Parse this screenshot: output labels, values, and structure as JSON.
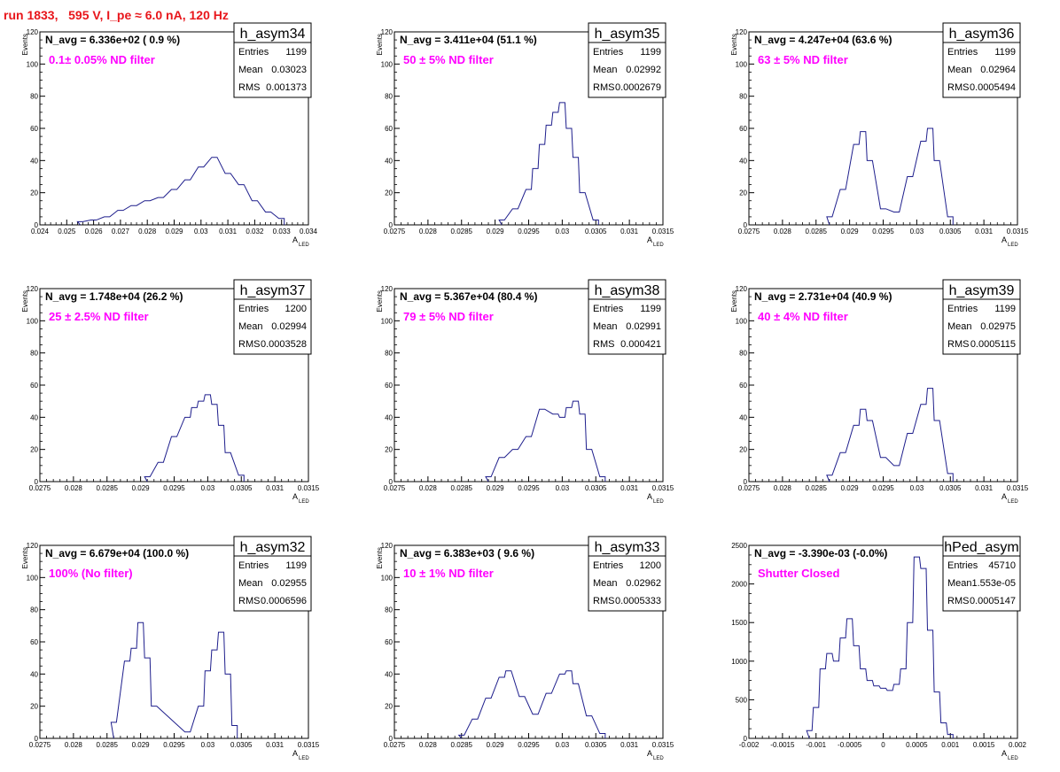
{
  "header": {
    "title": "run 1833,   595 V, I_pe ≈ 6.0 nA, 120 Hz"
  },
  "colors": {
    "histogram": "#1e1e8c",
    "annotation": "#ff00ff",
    "title": "#e8161b"
  },
  "chart_data": [
    {
      "type": "histogram",
      "name": "h_asym34",
      "stats": {
        "entries": "1199",
        "mean": "0.03023",
        "rms": "0.001373"
      },
      "navg": "N_avg = 6.336e+02 ( 0.9 %)",
      "filter": "0.1± 0.05% ND filter",
      "xlabel": "A",
      "xlabel_sub": "LED",
      "ylabel": "Events",
      "xlim": [
        0.024,
        0.034
      ],
      "ylim": [
        0,
        120
      ],
      "xticks": [
        "0.024",
        "0.025",
        "0.026",
        "0.027",
        "0.028",
        "0.029",
        "0.03",
        "0.031",
        "0.032",
        "0.033",
        "0.034"
      ],
      "xtick_values": [
        0.024,
        0.025,
        0.026,
        0.027,
        0.028,
        0.029,
        0.03,
        0.031,
        0.032,
        0.033,
        0.034
      ],
      "yticks": [
        0,
        20,
        40,
        60,
        80,
        100,
        120
      ],
      "x": [
        0.0255,
        0.026,
        0.0265,
        0.027,
        0.0275,
        0.028,
        0.0285,
        0.029,
        0.0295,
        0.03,
        0.0305,
        0.031,
        0.0315,
        0.032,
        0.0325,
        0.033
      ],
      "y": [
        2,
        3,
        5,
        9,
        12,
        15,
        17,
        22,
        28,
        36,
        42,
        32,
        25,
        15,
        8,
        4
      ]
    },
    {
      "type": "histogram",
      "name": "h_asym35",
      "stats": {
        "entries": "1199",
        "mean": "0.02992",
        "rms": "0.0002679"
      },
      "navg": "N_avg = 3.411e+04 (51.1 %)",
      "filter": "50 ± 5% ND filter",
      "xlabel": "A",
      "xlabel_sub": "LED",
      "ylabel": "Events",
      "xlim": [
        0.0275,
        0.0315
      ],
      "ylim": [
        0,
        120
      ],
      "xticks": [
        "0.0275",
        "0.028",
        "0.0285",
        "0.029",
        "0.0295",
        "0.03",
        "0.0305",
        "0.031",
        "0.0315"
      ],
      "xtick_values": [
        0.0275,
        0.028,
        0.0285,
        0.029,
        0.0295,
        0.03,
        0.0305,
        0.031,
        0.0315
      ],
      "yticks": [
        0,
        20,
        40,
        60,
        80,
        100,
        120
      ],
      "x": [
        0.0291,
        0.0293,
        0.0295,
        0.0296,
        0.0297,
        0.0298,
        0.0299,
        0.03,
        0.0301,
        0.0302,
        0.0303,
        0.0305
      ],
      "y": [
        3,
        10,
        22,
        35,
        50,
        62,
        70,
        76,
        60,
        42,
        20,
        3
      ]
    },
    {
      "type": "histogram",
      "name": "h_asym36",
      "stats": {
        "entries": "1199",
        "mean": "0.02964",
        "rms": "0.0005494"
      },
      "navg": "N_avg = 4.247e+04 (63.6 %)",
      "filter": "63 ± 5% ND filter",
      "xlabel": "A",
      "xlabel_sub": "LED",
      "ylabel": "Events",
      "xlim": [
        0.0275,
        0.0315
      ],
      "ylim": [
        0,
        120
      ],
      "xticks": [
        "0.0275",
        "0.028",
        "0.0285",
        "0.029",
        "0.0295",
        "0.03",
        "0.0305",
        "0.031",
        "0.0315"
      ],
      "xtick_values": [
        0.0275,
        0.028,
        0.0285,
        0.029,
        0.0295,
        0.03,
        0.0305,
        0.031,
        0.0315
      ],
      "yticks": [
        0,
        20,
        40,
        60,
        80,
        100,
        120
      ],
      "x": [
        0.0287,
        0.0289,
        0.0291,
        0.0292,
        0.0293,
        0.0295,
        0.0297,
        0.0299,
        0.0301,
        0.0302,
        0.0303,
        0.0305
      ],
      "y": [
        5,
        22,
        50,
        58,
        40,
        10,
        8,
        30,
        52,
        60,
        40,
        5
      ]
    },
    {
      "type": "histogram",
      "name": "h_asym37",
      "stats": {
        "entries": "1200",
        "mean": "0.02994",
        "rms": "0.0003528"
      },
      "navg": "N_avg = 1.748e+04 (26.2 %)",
      "filter": "25 ± 2.5% ND filter",
      "xlabel": "A",
      "xlabel_sub": "LED",
      "ylabel": "Events",
      "xlim": [
        0.0275,
        0.0315
      ],
      "ylim": [
        0,
        120
      ],
      "xticks": [
        "0.0275",
        "0.028",
        "0.0285",
        "0.029",
        "0.0295",
        "0.03",
        "0.0305",
        "0.031",
        "0.0315"
      ],
      "xtick_values": [
        0.0275,
        0.028,
        0.0285,
        0.029,
        0.0295,
        0.03,
        0.0305,
        0.031,
        0.0315
      ],
      "yticks": [
        0,
        20,
        40,
        60,
        80,
        100,
        120
      ],
      "x": [
        0.0291,
        0.0293,
        0.0295,
        0.0297,
        0.0298,
        0.0299,
        0.03,
        0.0301,
        0.0302,
        0.0303,
        0.0305
      ],
      "y": [
        3,
        12,
        28,
        40,
        46,
        50,
        54,
        48,
        35,
        18,
        4
      ]
    },
    {
      "type": "histogram",
      "name": "h_asym38",
      "stats": {
        "entries": "1199",
        "mean": "0.02991",
        "rms": "0.000421"
      },
      "navg": "N_avg = 5.367e+04 (80.4 %)",
      "filter": "79 ± 5% ND filter",
      "xlabel": "A",
      "xlabel_sub": "LED",
      "ylabel": "Events",
      "xlim": [
        0.0275,
        0.0315
      ],
      "ylim": [
        0,
        120
      ],
      "xticks": [
        "0.0275",
        "0.028",
        "0.0285",
        "0.029",
        "0.0295",
        "0.03",
        "0.0305",
        "0.031",
        "0.0315"
      ],
      "xtick_values": [
        0.0275,
        0.028,
        0.0285,
        0.029,
        0.0295,
        0.03,
        0.0305,
        0.031,
        0.0315
      ],
      "yticks": [
        0,
        20,
        40,
        60,
        80,
        100,
        120
      ],
      "x": [
        0.0289,
        0.0291,
        0.0293,
        0.0295,
        0.0297,
        0.0299,
        0.03,
        0.0301,
        0.0302,
        0.0303,
        0.0304,
        0.0306
      ],
      "y": [
        3,
        15,
        20,
        28,
        45,
        42,
        40,
        46,
        50,
        42,
        20,
        3
      ]
    },
    {
      "type": "histogram",
      "name": "h_asym39",
      "stats": {
        "entries": "1199",
        "mean": "0.02975",
        "rms": "0.0005115"
      },
      "navg": "N_avg = 2.731e+04 (40.9 %)",
      "filter": "40 ± 4% ND filter",
      "xlabel": "A",
      "xlabel_sub": "LED",
      "ylabel": "Events",
      "xlim": [
        0.0275,
        0.0315
      ],
      "ylim": [
        0,
        120
      ],
      "xticks": [
        "0.0275",
        "0.028",
        "0.0285",
        "0.029",
        "0.0295",
        "0.03",
        "0.0305",
        "0.031",
        "0.0315"
      ],
      "xtick_values": [
        0.0275,
        0.028,
        0.0285,
        0.029,
        0.0295,
        0.03,
        0.0305,
        0.031,
        0.0315
      ],
      "yticks": [
        0,
        20,
        40,
        60,
        80,
        100,
        120
      ],
      "x": [
        0.0287,
        0.0289,
        0.0291,
        0.0292,
        0.0293,
        0.0295,
        0.0297,
        0.0299,
        0.0301,
        0.0302,
        0.0303,
        0.0305
      ],
      "y": [
        4,
        18,
        35,
        45,
        38,
        15,
        10,
        30,
        48,
        58,
        38,
        5
      ]
    },
    {
      "type": "histogram",
      "name": "h_asym32",
      "stats": {
        "entries": "1199",
        "mean": "0.02955",
        "rms": "0.0006596"
      },
      "navg": "N_avg = 6.679e+04 (100.0 %)",
      "filter": "100% (No filter)",
      "xlabel": "A",
      "xlabel_sub": "LED",
      "ylabel": "Events",
      "xlim": [
        0.0275,
        0.0315
      ],
      "ylim": [
        0,
        120
      ],
      "xticks": [
        "0.0275",
        "0.028",
        "0.0285",
        "0.029",
        "0.0295",
        "0.03",
        "0.0305",
        "0.031",
        "0.0315"
      ],
      "xtick_values": [
        0.0275,
        0.028,
        0.0285,
        0.029,
        0.0295,
        0.03,
        0.0305,
        0.031,
        0.0315
      ],
      "yticks": [
        0,
        20,
        40,
        60,
        80,
        100,
        120
      ],
      "x": [
        0.0286,
        0.0288,
        0.0289,
        0.029,
        0.0291,
        0.0292,
        0.0297,
        0.0299,
        0.03,
        0.0301,
        0.0302,
        0.0303,
        0.0304
      ],
      "y": [
        10,
        48,
        56,
        72,
        50,
        20,
        4,
        20,
        42,
        55,
        66,
        40,
        8
      ]
    },
    {
      "type": "histogram",
      "name": "h_asym33",
      "stats": {
        "entries": "1200",
        "mean": "0.02962",
        "rms": "0.0005333"
      },
      "navg": "N_avg = 6.383e+03 ( 9.6 %)",
      "filter": "10 ± 1% ND filter",
      "xlabel": "A",
      "xlabel_sub": "LED",
      "ylabel": "Events",
      "xlim": [
        0.0275,
        0.0315
      ],
      "ylim": [
        0,
        120
      ],
      "xticks": [
        "0.0275",
        "0.028",
        "0.0285",
        "0.029",
        "0.0295",
        "0.03",
        "0.0305",
        "0.031",
        "0.0315"
      ],
      "xtick_values": [
        0.0275,
        0.028,
        0.0285,
        0.029,
        0.0295,
        0.03,
        0.0305,
        0.031,
        0.0315
      ],
      "yticks": [
        0,
        20,
        40,
        60,
        80,
        100,
        120
      ],
      "x": [
        0.0285,
        0.0287,
        0.0289,
        0.0291,
        0.0292,
        0.0294,
        0.0296,
        0.0298,
        0.03,
        0.0301,
        0.0302,
        0.0304,
        0.0306
      ],
      "y": [
        2,
        12,
        25,
        38,
        42,
        26,
        15,
        28,
        40,
        42,
        34,
        14,
        3
      ]
    },
    {
      "type": "histogram",
      "name": "hPed_asym",
      "stats": {
        "entries": "45710",
        "mean": "1.553e-05",
        "rms": "0.0005147"
      },
      "navg": "N_avg = -3.390e-03 (-0.0%)",
      "filter": "Shutter Closed",
      "xlabel": "A",
      "xlabel_sub": "LED",
      "ylabel": "",
      "xlim": [
        -0.002,
        0.002
      ],
      "ylim": [
        0,
        2500
      ],
      "xticks": [
        "-0.002",
        "-0.0015",
        "-0.001",
        "-0.0005",
        "0",
        "0.0005",
        "0.001",
        "0.0015",
        "0.002"
      ],
      "xtick_values": [
        -0.002,
        -0.0015,
        -0.001,
        -0.0005,
        0,
        0.0005,
        0.001,
        0.0015,
        0.002
      ],
      "yticks": [
        0,
        500,
        1000,
        1500,
        2000,
        2500
      ],
      "x": [
        -0.0011,
        -0.001,
        -0.0009,
        -0.0008,
        -0.0007,
        -0.0006,
        -0.0005,
        -0.0004,
        -0.0003,
        -0.0002,
        -0.0001,
        0,
        0.0001,
        0.0002,
        0.0003,
        0.0004,
        0.0005,
        0.0006,
        0.0007,
        0.0008,
        0.0009,
        0.001
      ],
      "y": [
        100,
        400,
        900,
        1100,
        1000,
        1300,
        1550,
        1200,
        900,
        750,
        680,
        650,
        620,
        700,
        900,
        1500,
        2350,
        2200,
        1400,
        600,
        200,
        50
      ]
    }
  ]
}
